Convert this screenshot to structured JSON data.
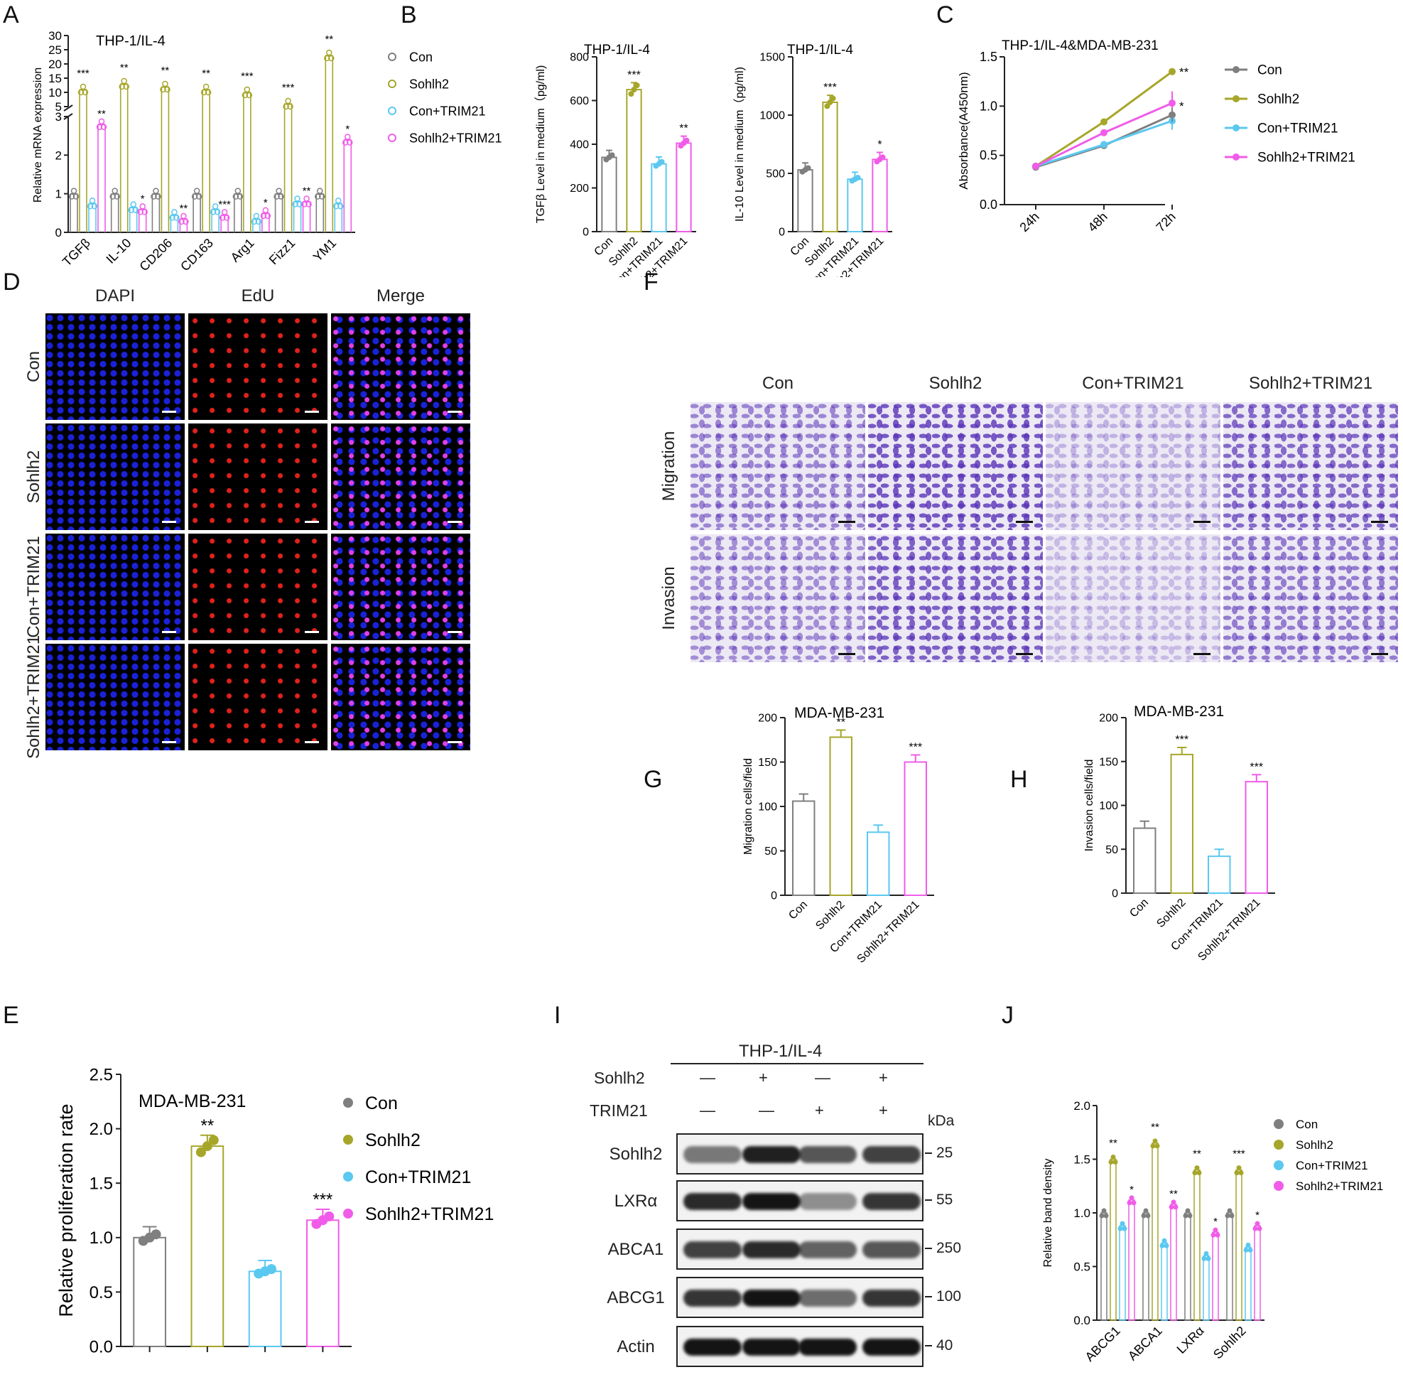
{
  "panels": {
    "A": {
      "letter": "A",
      "title": "THP-1/IL-4",
      "ylabel": "Relative mRNA expression",
      "legend": [
        "Con",
        "Sohlh2",
        "Con+TRIM21",
        "Sohlh2+TRIM21"
      ],
      "top_ticks": [
        "5",
        "10",
        "15",
        "20",
        "25",
        "30"
      ],
      "bottom_ticks": [
        "0",
        "1",
        "2",
        "3"
      ]
    },
    "B": {
      "letter": "B",
      "left_title": "THP-1/IL-4",
      "left_ylabel": "TGFβ Level in medium（pg/ml)",
      "right_title": "THP-1/IL-4",
      "right_ylabel": "IL-10 Level in medium（pg/ml)"
    },
    "C": {
      "letter": "C",
      "title": "THP-1/IL-4&MDA-MB-231",
      "ylabel": "Absorbance(A450nm)",
      "legend": [
        "Con",
        "Sohlh2",
        "Con+TRIM21",
        "Sohlh2+TRIM21"
      ]
    },
    "D": {
      "letter": "D",
      "columns": [
        "DAPI",
        "EdU",
        "Merge"
      ],
      "rows": [
        "Con",
        "Sohlh2",
        "Con+TRIM21",
        "Sohlh2+TRIM21"
      ]
    },
    "E": {
      "letter": "E",
      "title": "MDA-MB-231",
      "ylabel": "Relative proliferation rate",
      "legend": [
        "Con",
        "Sohlh2",
        "Con+TRIM21",
        "Sohlh2+TRIM21"
      ]
    },
    "F": {
      "letter": "F",
      "columns": [
        "Con",
        "Sohlh2",
        "Con+TRIM21",
        "Sohlh2+TRIM21"
      ],
      "rows": [
        "Migration",
        "Invasion"
      ]
    },
    "G": {
      "letter": "G",
      "title": "MDA-MB-231",
      "ylabel": "Migration cells/field"
    },
    "H": {
      "letter": "H",
      "title": "MDA-MB-231",
      "ylabel": "Invasion cells/field"
    },
    "I": {
      "letter": "I",
      "header": "THP-1/IL-4",
      "row1_label": "Sohlh2",
      "row2_label": "TRIM21",
      "row1_signs": [
        "—",
        "+",
        "—",
        "+"
      ],
      "row2_signs": [
        "—",
        "—",
        "+",
        "+"
      ],
      "kda_label": "kDa",
      "bands": [
        {
          "name": "Sohlh2",
          "kda": "25"
        },
        {
          "name": "LXRα",
          "kda": "55"
        },
        {
          "name": "ABCA1",
          "kda": "250"
        },
        {
          "name": "ABCG1",
          "kda": "100"
        },
        {
          "name": "Actin",
          "kda": "40"
        }
      ]
    },
    "J": {
      "letter": "J",
      "ylabel": "Relative  band density",
      "legend": [
        "Con",
        "Sohlh2",
        "Con+TRIM21",
        "Sohlh2+TRIM21"
      ]
    }
  },
  "colors": {
    "con": "#7f7f7f",
    "sohlh2": "#a6a62a",
    "con_trim21": "#5bc8f0",
    "sohlh2_trim21": "#f05ce8",
    "dapi": "#1a22d8",
    "edu": "#e0221a",
    "crystal": "#5a34b8"
  },
  "chart_data": [
    {
      "panel": "A",
      "type": "bar",
      "title": "THP-1/IL-4",
      "ylabel": "Relative mRNA expression",
      "categories": [
        "TGFβ",
        "IL-10",
        "CD206",
        "CD163",
        "Arg1",
        "Fizz1",
        "YM1"
      ],
      "series": [
        {
          "name": "Con",
          "values": [
            1.0,
            1.0,
            1.0,
            1.0,
            1.0,
            1.0,
            1.0
          ]
        },
        {
          "name": "Sohlh2",
          "values": [
            11,
            13,
            12,
            11,
            10,
            6,
            23
          ]
        },
        {
          "name": "Con+TRIM21",
          "values": [
            0.75,
            0.65,
            0.45,
            0.6,
            0.35,
            0.8,
            0.75
          ]
        },
        {
          "name": "Sohlh2+TRIM21",
          "values": [
            2.8,
            0.6,
            0.35,
            0.45,
            0.5,
            0.8,
            2.4
          ]
        }
      ],
      "sig_sohlh2": [
        "***",
        "**",
        "**",
        "**",
        "***",
        "***",
        "**"
      ],
      "sig_trim21": [
        "**",
        "*",
        "**",
        "***",
        "*",
        "**",
        "*"
      ],
      "axis_break": [
        3,
        5
      ],
      "ylim": [
        0,
        30
      ]
    },
    {
      "panel": "B-left",
      "type": "bar",
      "title": "THP-1/IL-4",
      "ylabel": "TGFβ Level in medium（pg/ml)",
      "categories": [
        "Con",
        "Sohlh2",
        "Con+TRIM21",
        "Sohlh2+TRIM21"
      ],
      "values": [
        340,
        650,
        310,
        405
      ],
      "sig": [
        "",
        "***",
        "",
        "**"
      ],
      "ylim": [
        0,
        800
      ],
      "yticks": [
        "0",
        "200",
        "400",
        "600",
        "800"
      ]
    },
    {
      "panel": "B-right",
      "type": "bar",
      "title": "THP-1/IL-4",
      "ylabel": "IL-10 Level in medium（pg/ml)",
      "categories": [
        "Con",
        "Sohlh2",
        "Con+TRIM21",
        "Sohlh2+TRIM21"
      ],
      "values": [
        530,
        1110,
        450,
        620
      ],
      "sig": [
        "",
        "***",
        "",
        "*"
      ],
      "ylim": [
        0,
        1500
      ],
      "yticks": [
        "0",
        "500",
        "1000",
        "1500"
      ]
    },
    {
      "panel": "C",
      "type": "line",
      "title": "THP-1/IL-4&MDA-MB-231",
      "ylabel": "Absorbance(A450nm)",
      "x": [
        "24h",
        "48h",
        "72h"
      ],
      "series": [
        {
          "name": "Con",
          "values": [
            0.38,
            0.6,
            0.91
          ]
        },
        {
          "name": "Sohlh2",
          "values": [
            0.39,
            0.84,
            1.35
          ]
        },
        {
          "name": "Con+TRIM21",
          "values": [
            0.39,
            0.61,
            0.85
          ]
        },
        {
          "name": "Sohlh2+TRIM21",
          "values": [
            0.39,
            0.73,
            1.03
          ]
        }
      ],
      "sig": [
        "",
        "**",
        "",
        "*"
      ],
      "ylim": [
        0,
        1.5
      ],
      "yticks": [
        "0.0",
        "0.5",
        "1.0",
        "1.5"
      ]
    },
    {
      "panel": "E",
      "type": "bar",
      "title": "MDA-MB-231",
      "ylabel": "Relative proliferation rate",
      "categories": [
        "Con",
        "Sohlh2",
        "Con+TRIM21",
        "Sohlh2+TRIM21"
      ],
      "values": [
        1.0,
        1.84,
        0.69,
        1.16
      ],
      "sig": [
        "",
        "**",
        "",
        "***"
      ],
      "ylim": [
        0,
        2.5
      ],
      "yticks": [
        "0.0",
        "0.5",
        "1.0",
        "1.5",
        "2.0",
        "2.5"
      ]
    },
    {
      "panel": "G",
      "type": "bar",
      "title": "MDA-MB-231",
      "ylabel": "Migration cells/field",
      "categories": [
        "Con",
        "Sohlh2",
        "Con+TRIM21",
        "Sohlh2+TRIM21"
      ],
      "values": [
        106,
        178,
        71,
        150
      ],
      "sig": [
        "",
        "**",
        "",
        "***"
      ],
      "ylim": [
        0,
        200
      ],
      "yticks": [
        "0",
        "50",
        "100",
        "150",
        "200"
      ]
    },
    {
      "panel": "H",
      "type": "bar",
      "title": "MDA-MB-231",
      "ylabel": "Invasion cells/field",
      "categories": [
        "Con",
        "Sohlh2",
        "Con+TRIM21",
        "Sohlh2+TRIM21"
      ],
      "values": [
        74,
        158,
        42,
        127
      ],
      "sig": [
        "",
        "***",
        "",
        "***"
      ],
      "ylim": [
        0,
        200
      ],
      "yticks": [
        "0",
        "50",
        "100",
        "150",
        "200"
      ]
    },
    {
      "panel": "J",
      "type": "bar",
      "ylabel": "Relative  band density",
      "categories": [
        "ABCG1",
        "ABCA1",
        "LXRα",
        "Sohlh2"
      ],
      "series": [
        {
          "name": "Con",
          "values": [
            1.0,
            1.0,
            1.0,
            1.0
          ]
        },
        {
          "name": "Sohlh2",
          "values": [
            1.5,
            1.65,
            1.4,
            1.4
          ]
        },
        {
          "name": "Con+TRIM21",
          "values": [
            0.88,
            0.72,
            0.6,
            0.68
          ]
        },
        {
          "name": "Sohlh2+TRIM21",
          "values": [
            1.12,
            1.08,
            0.82,
            0.88
          ]
        }
      ],
      "sig_sohlh2": [
        "**",
        "**",
        "**",
        "***"
      ],
      "sig_trim21": [
        "*",
        "**",
        "*",
        "*"
      ],
      "ylim": [
        0,
        2.0
      ],
      "yticks": [
        "0.0",
        "0.5",
        "1.0",
        "1.5",
        "2.0"
      ]
    }
  ]
}
